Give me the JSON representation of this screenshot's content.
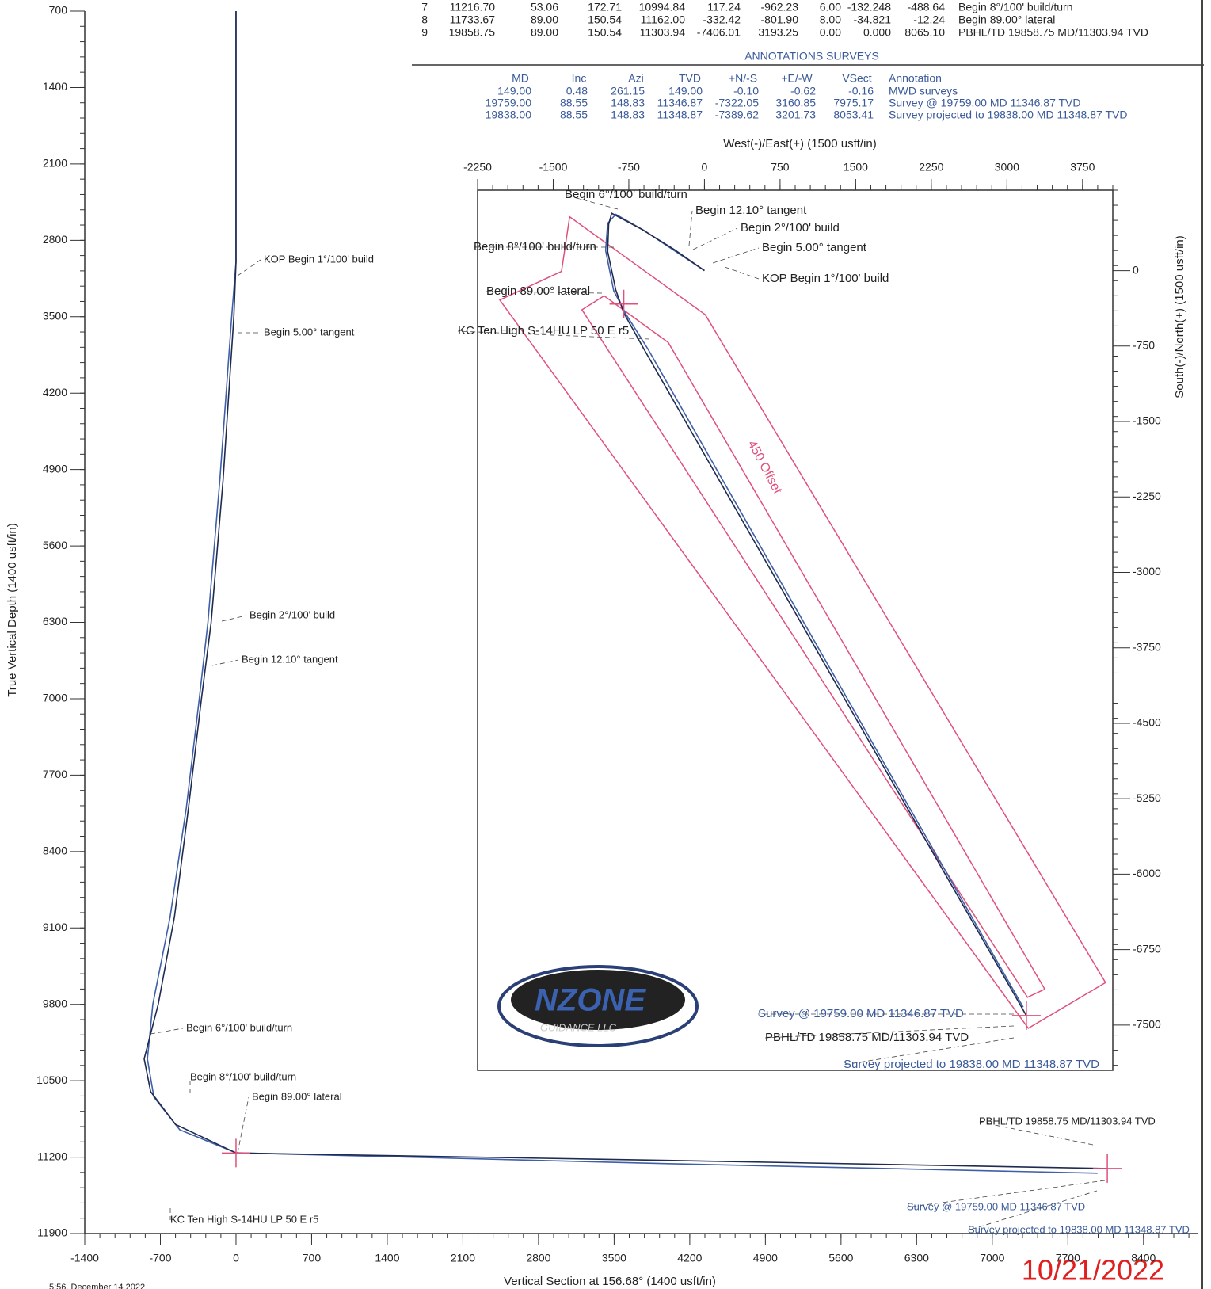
{
  "plan_table": {
    "rows": [
      [
        "7",
        "11216.70",
        "53.06",
        "172.71",
        "10994.84",
        "117.24",
        "-962.23",
        "6.00",
        "-132.248",
        "-488.64",
        "Begin 8°/100' build/turn"
      ],
      [
        "8",
        "11733.67",
        "89.00",
        "150.54",
        "11162.00",
        "-332.42",
        "-801.90",
        "8.00",
        "-34.821",
        "-12.24",
        "Begin 89.00° lateral"
      ],
      [
        "9",
        "19858.75",
        "89.00",
        "150.54",
        "11303.94",
        "-7406.01",
        "3193.25",
        "0.00",
        "0.000",
        "8065.10",
        "PBHL/TD 19858.75 MD/11303.94 TVD"
      ]
    ]
  },
  "annotations_surveys": {
    "title": "ANNOTATIONS SURVEYS",
    "header": [
      "MD",
      "Inc",
      "Azi",
      "TVD",
      "+N/-S",
      "+E/-W",
      "VSect",
      "Annotation"
    ],
    "rows": [
      [
        "149.00",
        "0.48",
        "261.15",
        "149.00",
        "-0.10",
        "-0.62",
        "-0.16",
        "MWD surveys"
      ],
      [
        "19759.00",
        "88.55",
        "148.83",
        "11346.87",
        "-7322.05",
        "3160.85",
        "7975.17",
        "Survey @ 19759.00 MD 11346.87 TVD"
      ],
      [
        "19838.00",
        "88.55",
        "148.83",
        "11348.87",
        "-7389.62",
        "3201.73",
        "8053.41",
        "Survey projected to 19838.00 MD 11348.87 TVD"
      ]
    ]
  },
  "chart_data": [
    {
      "type": "line",
      "xlabel": "Vertical Section at 156.68° (1400 usft/in)",
      "ylabel": "True Vertical Depth (1400 usft/in)",
      "xlim": [
        -1400,
        8900
      ],
      "ylim": [
        700,
        11900
      ],
      "y_inverted": true,
      "xticks": [
        -1400,
        -700,
        0,
        700,
        1400,
        2100,
        2800,
        3500,
        4200,
        4900,
        5600,
        6300,
        7000,
        7700,
        8400
      ],
      "yticks": [
        700,
        1400,
        2100,
        2800,
        3500,
        4200,
        4900,
        5600,
        6300,
        7000,
        7700,
        8400,
        9100,
        9800,
        10500,
        11200,
        11900
      ],
      "series": [
        {
          "color": "#3f5fa8",
          "x": [
            0,
            0,
            -40,
            -150,
            -260,
            -340,
            -460,
            -610,
            -770,
            -820,
            -760,
            -520,
            0,
            4000,
            7975
          ],
          "values": [
            700,
            3000,
            3500,
            5000,
            6300,
            7000,
            8000,
            9000,
            9800,
            10300,
            10650,
            10950,
            11160,
            11260,
            11347
          ]
        },
        {
          "color": "#1f2b4f",
          "x": [
            0,
            0,
            -20,
            -120,
            -230,
            -320,
            -440,
            -570,
            -720,
            -850,
            -790,
            -560,
            0,
            4000,
            8065
          ],
          "values": [
            700,
            3000,
            3500,
            5000,
            6300,
            7000,
            8000,
            9000,
            9800,
            10300,
            10600,
            10900,
            11162,
            11230,
            11304
          ]
        }
      ],
      "targets": {
        "color": "#e0507a",
        "x": [
          0,
          8065
        ],
        "y": [
          11162,
          11304
        ]
      },
      "annotations": [
        "KOP Begin 1°/100' build",
        "Begin 5.00° tangent",
        "Begin 2°/100' build",
        "Begin 12.10° tangent",
        "Begin 6°/100' build/turn",
        "Begin 8°/100' build/turn",
        "Begin 89.00° lateral",
        "KC Ten High S-14HU LP 50 E r5",
        "PBHL/TD 19858.75 MD/11303.94 TVD",
        "Survey @ 19759.00 MD 11346.87 TVD",
        "Survey projected to 19838.00 MD 11348.87 TVD"
      ]
    },
    {
      "type": "line",
      "xlabel": "West(-)/East(+) (1500 usft/in)",
      "ylabel": "South(-)/North(+) (1500 usft/in)",
      "xlim": [
        -2250,
        4050
      ],
      "ylim": [
        -7950,
        800
      ],
      "xticks": [
        -2250,
        -1500,
        -750,
        0,
        750,
        1500,
        2250,
        3000,
        3750
      ],
      "yticks": [
        0,
        -750,
        -1500,
        -2250,
        -3000,
        -3750,
        -4500,
        -5250,
        -6000,
        -6750,
        -7500
      ],
      "series": [
        {
          "color": "#3f5fa8",
          "x": [
            0,
            -300,
            -600,
            -880,
            -960,
            -980,
            -900,
            -780,
            -560,
            3161
          ],
          "values": [
            0,
            200,
            400,
            560,
            470,
            200,
            -200,
            -430,
            -780,
            -7322
          ]
        },
        {
          "color": "#1f2b4f",
          "x": [
            0,
            -300,
            -620,
            -920,
            -950,
            -960,
            -880,
            -800,
            -600,
            3193
          ],
          "values": [
            0,
            210,
            410,
            570,
            460,
            190,
            -190,
            -420,
            -780,
            -7406
          ]
        }
      ],
      "offset_polygons": [
        {
          "x": [
            -1337,
            8,
            3978,
            3212,
            -2030,
            -1418
          ],
          "y": [
            535,
            -438,
            -7078,
            -7532,
            -292,
            -8
          ]
        },
        {
          "x": [
            -1215,
            -995,
            -359,
            3375,
            3204
          ],
          "y": [
            -389,
            -251,
            -714,
            -7143,
            -7224
          ]
        }
      ],
      "offset_color": "#e0507a",
      "offset_label": "450 Offset",
      "targets": {
        "color": "#e0507a",
        "x": [
          -800,
          3193
        ],
        "y": [
          -332,
          -7406
        ]
      },
      "annotations": [
        "Begin 6°/100' build/turn",
        "Begin 12.10° tangent",
        "Begin 2°/100' build",
        "Begin 5.00° tangent",
        "KOP Begin 1°/100' build",
        "Begin 8°/100' build/turn",
        "Begin 89.00° lateral",
        "KC Ten High S-14HU LP 50 E r5",
        "Survey @ 19759.00 MD 11346.87 TVD",
        "PBHL/TD 19858.75 MD/11303.94 TVD",
        "Survey projected to 19838.00 MD 11348.87 TVD"
      ]
    }
  ],
  "logo": {
    "name": "NZONE",
    "sub": "GUIDANCE LLC"
  },
  "date": "10/21/2022",
  "footer": "5:56, December 14 2022"
}
